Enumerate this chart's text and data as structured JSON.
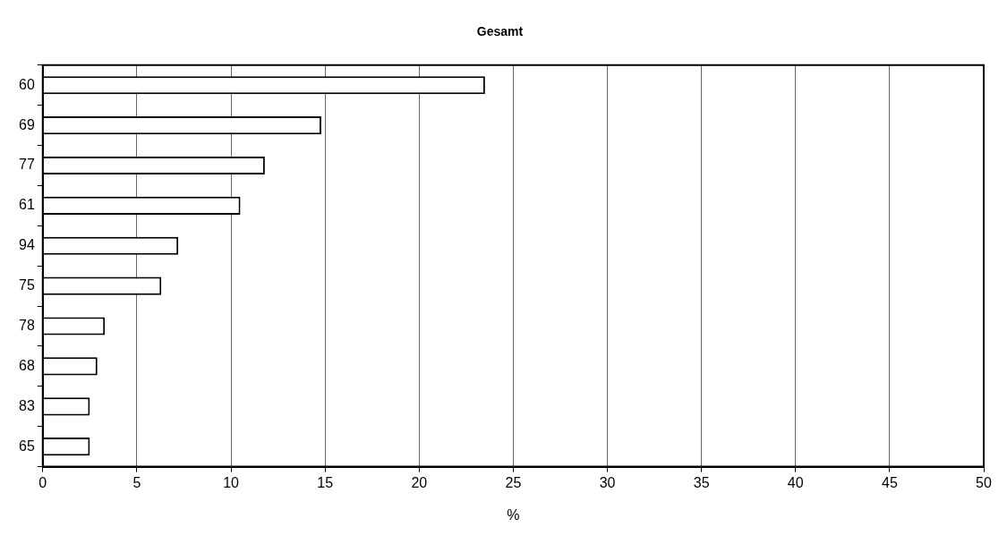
{
  "chart_data": {
    "type": "bar",
    "orientation": "horizontal",
    "title": "Gesamt",
    "xlabel": "%",
    "categories": [
      "60",
      "69",
      "77",
      "61",
      "94",
      "75",
      "78",
      "68",
      "83",
      "65"
    ],
    "values": [
      23.5,
      14.8,
      11.8,
      10.5,
      7.2,
      6.3,
      3.3,
      2.9,
      2.5,
      2.5
    ],
    "color": "#ffffff",
    "xlim": [
      0,
      50
    ],
    "xticks": [
      0,
      5,
      10,
      15,
      20,
      25,
      30,
      35,
      40,
      45,
      50
    ],
    "grid": "x",
    "legend": false
  }
}
